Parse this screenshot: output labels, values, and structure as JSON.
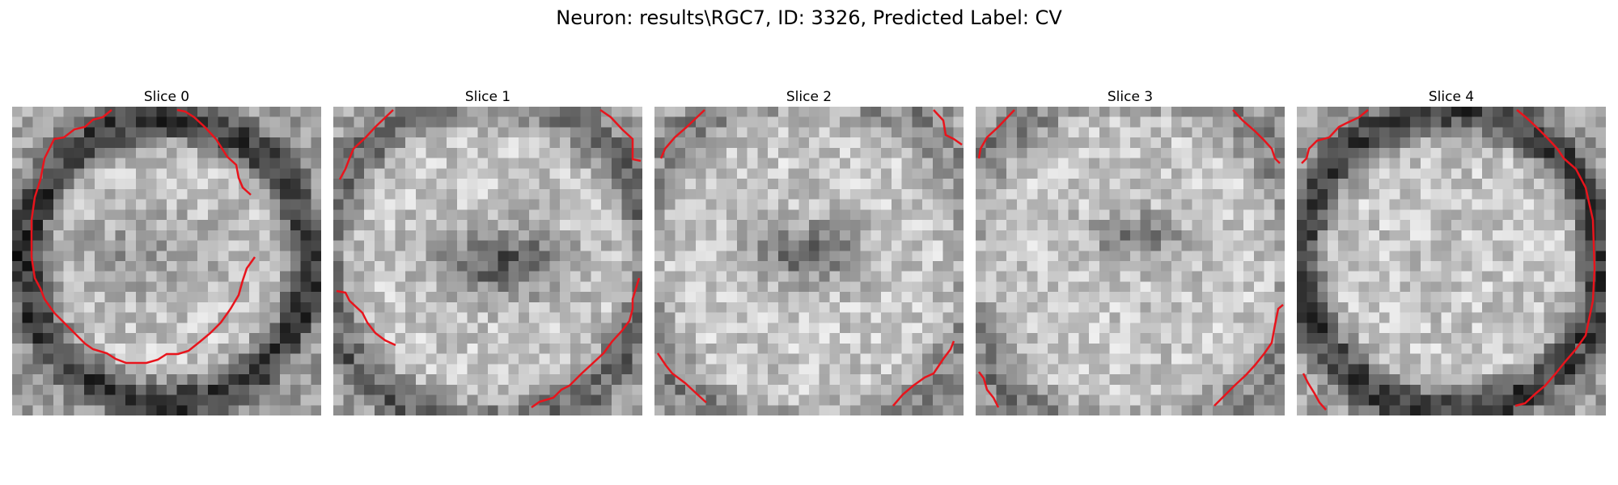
{
  "figure": {
    "title": "Neuron: results\\RGC7, ID: 3326, Predicted Label: CV"
  },
  "panels": [
    {
      "title": "Slice 0"
    },
    {
      "title": "Slice 1"
    },
    {
      "title": "Slice 2"
    },
    {
      "title": "Slice 3"
    },
    {
      "title": "Slice 4"
    }
  ],
  "style": {
    "contour_color": "#e8141c",
    "colormap": "gray"
  }
}
